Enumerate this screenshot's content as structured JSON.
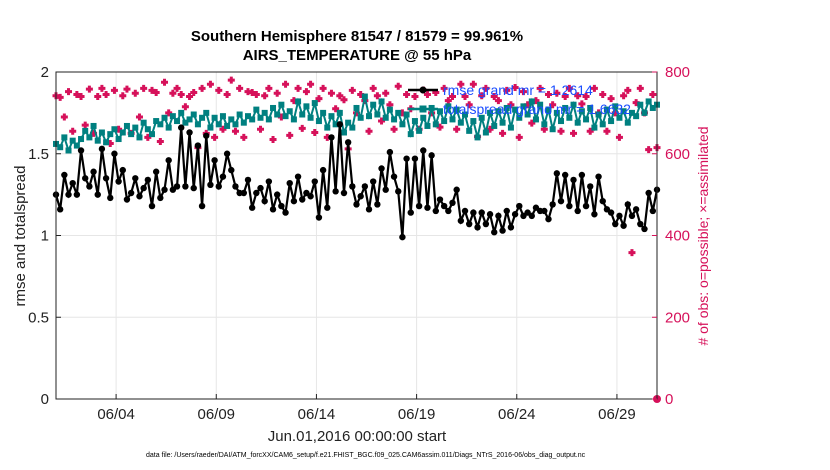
{
  "chart_data": {
    "type": "line",
    "title": [
      "Southern Hemisphere 81547 / 81579 = 99.961%",
      "AIRS_TEMPERATURE @ 55 hPa"
    ],
    "xlabel": "Jun.01,2016 00:00:00 start",
    "ylabel": "rmse and totalspread",
    "y2label": "# of obs: o=possible; ×=assimilated",
    "footnote": "data file: /Users/raeder/DAI/ATM_forcXX/CAM6_setup/f.e21.FHIST_BGC.f09_025.CAM6assim.011/Diags_NTrS_2016-06/obs_diag_output.nc",
    "x_tick_labels": [
      "06/04",
      "06/09",
      "06/14",
      "06/19",
      "06/24",
      "06/29"
    ],
    "x_tick_days": [
      4,
      9,
      14,
      19,
      24,
      29
    ],
    "xlim_days": [
      1,
      31
    ],
    "ylim": [
      0,
      2
    ],
    "y_ticks": [
      "0",
      "0.5",
      "1",
      "1.5",
      "2"
    ],
    "y2lim": [
      0,
      800
    ],
    "y2_ticks": [
      "0",
      "200",
      "400",
      "600",
      "800"
    ],
    "grid": true,
    "legend_position": "top-right",
    "colors": {
      "rmse": "#000000",
      "spread": "#008080",
      "obs": "#d6115a",
      "legend_text": "#1a4dff"
    },
    "series": [
      {
        "name": "rmse grand mr = 1.2614",
        "axis": "left",
        "values": [
          1.25,
          1.16,
          1.37,
          1.25,
          1.32,
          1.25,
          1.52,
          1.35,
          1.3,
          1.39,
          1.25,
          1.53,
          1.35,
          1.23,
          1.5,
          1.33,
          1.4,
          1.22,
          1.26,
          1.35,
          1.24,
          1.29,
          1.34,
          1.18,
          1.39,
          1.23,
          1.28,
          1.46,
          1.28,
          1.3,
          1.66,
          1.3,
          1.63,
          1.29,
          1.55,
          1.18,
          1.61,
          1.31,
          1.46,
          1.3,
          1.36,
          1.5,
          1.4,
          1.3,
          1.26,
          1.26,
          1.34,
          1.17,
          1.26,
          1.29,
          1.21,
          1.33,
          1.16,
          1.25,
          1.18,
          1.14,
          1.32,
          1.21,
          1.36,
          1.22,
          1.26,
          1.24,
          1.33,
          1.11,
          1.4,
          1.17,
          1.6,
          1.27,
          1.68,
          1.26,
          1.57,
          1.3,
          1.19,
          1.24,
          1.3,
          1.16,
          1.33,
          1.19,
          1.41,
          1.28,
          1.51,
          1.36,
          1.27,
          0.99,
          1.47,
          1.14,
          1.47,
          1.18,
          1.52,
          1.17,
          1.49,
          1.15,
          1.22,
          1.18,
          1.15,
          1.2,
          1.28,
          1.09,
          1.15,
          1.07,
          1.14,
          1.05,
          1.14,
          1.07,
          1.13,
          1.02,
          1.12,
          1.03,
          1.15,
          1.05,
          1.13,
          1.18,
          1.12,
          1.14,
          1.12,
          1.17,
          1.15,
          1.15,
          1.1,
          1.19,
          1.38,
          1.21,
          1.37,
          1.18,
          1.34,
          1.15,
          1.37,
          1.18,
          1.3,
          1.13,
          1.36,
          1.21,
          1.16,
          1.14,
          1.07,
          1.12,
          1.06,
          1.19,
          1.12,
          1.16,
          1.07,
          1.04,
          1.26,
          1.15,
          1.28
        ]
      },
      {
        "name": "totalspread grand mr = 1.6632",
        "axis": "left",
        "values": [
          1.56,
          1.54,
          1.6,
          1.52,
          1.58,
          1.55,
          1.59,
          1.64,
          1.6,
          1.67,
          1.58,
          1.63,
          1.57,
          1.62,
          1.65,
          1.59,
          1.63,
          1.67,
          1.62,
          1.66,
          1.6,
          1.69,
          1.65,
          1.62,
          1.7,
          1.68,
          1.72,
          1.66,
          1.73,
          1.7,
          1.75,
          1.69,
          1.71,
          1.74,
          1.68,
          1.72,
          1.75,
          1.66,
          1.72,
          1.68,
          1.73,
          1.67,
          1.71,
          1.68,
          1.74,
          1.69,
          1.73,
          1.71,
          1.77,
          1.72,
          1.75,
          1.71,
          1.78,
          1.74,
          1.8,
          1.73,
          1.76,
          1.71,
          1.82,
          1.74,
          1.79,
          1.72,
          1.81,
          1.7,
          1.75,
          1.66,
          1.73,
          1.68,
          1.75,
          1.63,
          1.69,
          1.66,
          1.78,
          1.72,
          1.85,
          1.73,
          1.8,
          1.74,
          1.82,
          1.72,
          1.77,
          1.71,
          1.75,
          1.68,
          1.74,
          1.62,
          1.7,
          1.64,
          1.72,
          1.67,
          1.78,
          1.68,
          1.76,
          1.7,
          1.79,
          1.71,
          1.77,
          1.69,
          1.74,
          1.64,
          1.7,
          1.6,
          1.72,
          1.63,
          1.75,
          1.67,
          1.76,
          1.69,
          1.78,
          1.66,
          1.77,
          1.72,
          1.79,
          1.74,
          1.82,
          1.71,
          1.8,
          1.68,
          1.77,
          1.65,
          1.75,
          1.7,
          1.78,
          1.72,
          1.8,
          1.69,
          1.76,
          1.71,
          1.78,
          1.66,
          1.74,
          1.68,
          1.77,
          1.7,
          1.79,
          1.72,
          1.76,
          1.69,
          1.75,
          1.73,
          1.8,
          1.75,
          1.82,
          1.78,
          1.8
        ]
      },
      {
        "name": "# of obs possible",
        "axis": "right",
        "values": [
          742,
          738,
          690,
          752,
          655,
          745,
          740,
          670,
          758,
          650,
          740,
          760,
          745,
          625,
          755,
          660,
          742,
          758,
          650,
          748,
          690,
          760,
          640,
          755,
          750,
          630,
          775,
          700,
          748,
          760,
          745,
          715,
          740,
          750,
          615,
          760,
          650,
          770,
          640,
          755,
          660,
          745,
          780,
          655,
          760,
          640,
          752,
          750,
          745,
          660,
          742,
          760,
          635,
          748,
          690,
          770,
          645,
          730,
          760,
          662,
          752,
          770,
          652,
          735,
          760,
          640,
          748,
          710,
          742,
          732,
          612,
          755,
          700,
          745,
          730,
          655,
          760,
          742,
          680,
          748,
          720,
          660,
          765,
          700,
          745,
          710,
          740,
          660,
          756,
          745,
          700,
          750,
          665,
          760,
          730,
          740,
          660,
          770,
          740,
          720,
          770,
          642,
          742,
          760,
          660,
          740,
          730,
          650,
          755,
          720,
          762,
          640,
          752,
          720,
          675,
          730,
          760,
          660,
          745,
          720,
          748,
          655,
          740,
          760,
          650,
          742,
          722,
          740,
          655,
          760,
          700,
          745,
          655,
          735,
          700,
          640,
          742,
          755,
          358,
          725,
          760,
          700,
          610,
          745,
          615
        ]
      }
    ]
  }
}
